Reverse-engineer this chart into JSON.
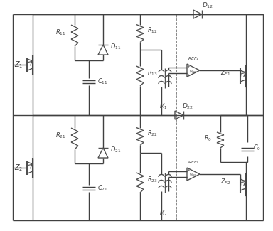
{
  "fig_width": 3.84,
  "fig_height": 3.25,
  "dpi": 100,
  "bg_color": "#ffffff",
  "line_color": "#404040",
  "lw": 1.0,
  "component_color": "#505050",
  "label_color": "#404040",
  "diode_size": 14
}
